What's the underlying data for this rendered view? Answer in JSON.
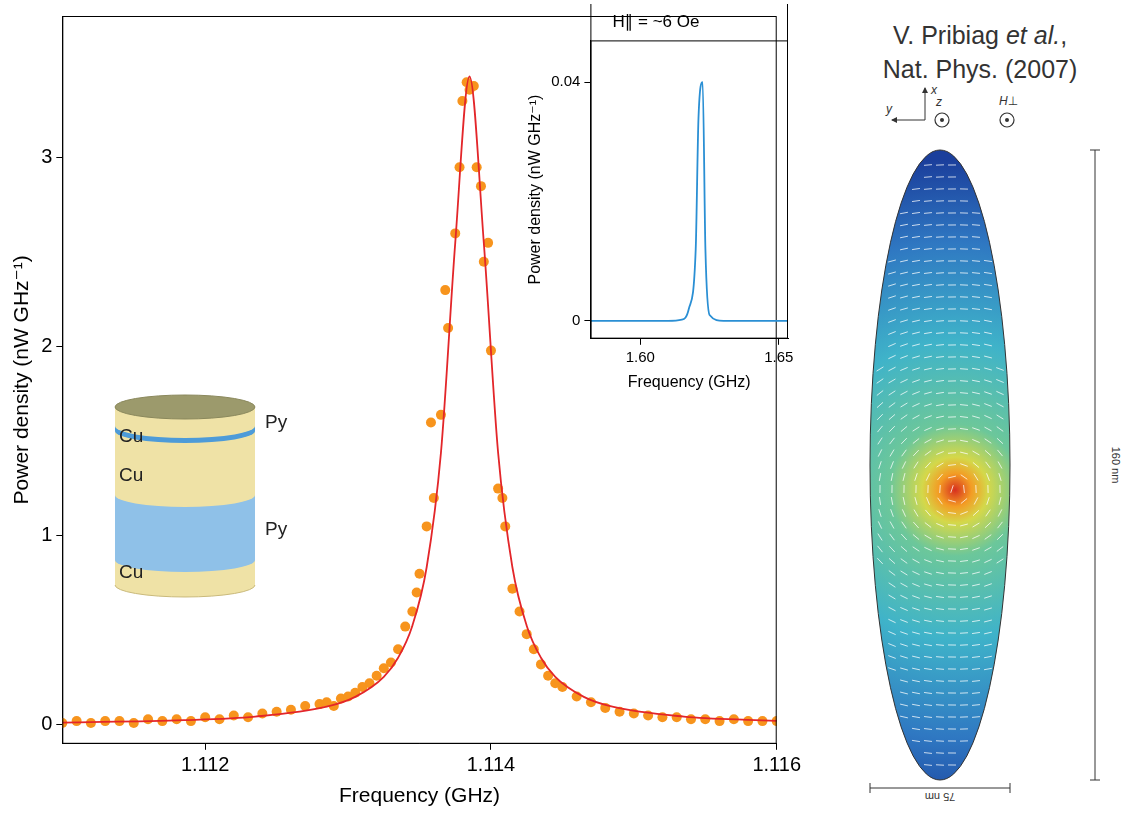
{
  "chart_data": [
    {
      "type": "scatter",
      "x_label": "Frequency (GHz)",
      "y_label": "Power density (nW GHz⁻¹)",
      "xlim": [
        1.111,
        1.116
      ],
      "xticks": [
        1.112,
        1.114,
        1.116
      ],
      "ylim": [
        -0.1,
        3.75
      ],
      "yticks": [
        0,
        1,
        2,
        3
      ],
      "grid": false,
      "series": [
        {
          "type": "scatter",
          "color": "#f7941d",
          "marker": "circle",
          "x": [
            1.111,
            1.1111,
            1.1112,
            1.1113,
            1.1114,
            1.1115,
            1.1116,
            1.1117,
            1.1118,
            1.1119,
            1.112,
            1.1121,
            1.1122,
            1.1123,
            1.1124,
            1.1125,
            1.1126,
            1.1127,
            1.1128,
            1.11285,
            1.1129,
            1.11295,
            1.113,
            1.11305,
            1.1131,
            1.11315,
            1.1132,
            1.11325,
            1.1133,
            1.11335,
            1.1134,
            1.11345,
            1.1135,
            1.11355,
            1.1136,
            1.11365,
            1.1137,
            1.11375,
            1.1138,
            1.11385,
            1.1139,
            1.11395,
            1.114,
            1.11405,
            1.1141,
            1.11415,
            1.1142,
            1.11425,
            1.1143,
            1.11435,
            1.1144,
            1.11445,
            1.11383,
            1.11388,
            1.11378,
            1.11393,
            1.11368,
            1.11398,
            1.11358,
            1.11408,
            1.11348,
            1.1145,
            1.1146,
            1.1147,
            1.1148,
            1.1149,
            1.115,
            1.1151,
            1.1152,
            1.1153,
            1.1154,
            1.1155,
            1.1156,
            1.1157,
            1.1158,
            1.1159,
            1.116
          ],
          "values": [
            0.01,
            0.02,
            0.01,
            0.02,
            0.02,
            0.01,
            0.03,
            0.02,
            0.03,
            0.02,
            0.04,
            0.03,
            0.05,
            0.04,
            0.06,
            0.07,
            0.08,
            0.1,
            0.11,
            0.12,
            0.1,
            0.14,
            0.15,
            0.17,
            0.2,
            0.22,
            0.26,
            0.3,
            0.33,
            0.4,
            0.52,
            0.6,
            0.8,
            1.05,
            1.2,
            1.64,
            2.1,
            2.6,
            3.3,
            3.36,
            2.95,
            2.45,
            1.98,
            1.25,
            1.05,
            0.72,
            0.6,
            0.48,
            0.4,
            0.32,
            0.26,
            0.22,
            3.4,
            3.38,
            2.95,
            2.85,
            2.3,
            2.55,
            1.6,
            1.2,
            0.7,
            0.2,
            0.15,
            0.12,
            0.09,
            0.07,
            0.06,
            0.05,
            0.04,
            0.04,
            0.03,
            0.03,
            0.02,
            0.03,
            0.02,
            0.02,
            0.02
          ]
        },
        {
          "type": "line",
          "color": "#e3262a",
          "line_style": "solid",
          "x": [
            1.111,
            1.11185,
            1.11235,
            1.11285,
            1.11305,
            1.11325,
            1.11335,
            1.11345,
            1.11355,
            1.11365,
            1.11375,
            1.11385,
            1.11395,
            1.11405,
            1.11415,
            1.11425,
            1.11435,
            1.11445,
            1.11465,
            1.11485,
            1.11535,
            1.11585,
            1.116
          ],
          "values": [
            0.012,
            0.025,
            0.044,
            0.096,
            0.148,
            0.254,
            0.355,
            0.525,
            0.834,
            1.44,
            2.55,
            3.43,
            2.55,
            1.44,
            0.834,
            0.525,
            0.355,
            0.254,
            0.148,
            0.096,
            0.044,
            0.025,
            0.021
          ]
        }
      ]
    },
    {
      "type": "line",
      "title": "H∥ = ~6 Oe",
      "x_label": "Frequency (GHz)",
      "y_label": "Power density (nW GHz⁻¹)",
      "xlim": [
        1.582,
        1.6533
      ],
      "xticks": [
        {
          "value": 1.6,
          "label": "1.60"
        },
        {
          "value": 1.65,
          "label": "1.65"
        }
      ],
      "ylim": [
        -0.003,
        0.047
      ],
      "yticks": [
        0,
        0.04
      ],
      "grid": false,
      "series": [
        {
          "color": "#2a8fd4",
          "line_style": "solid",
          "x": [
            1.582,
            1.59,
            1.6,
            1.61,
            1.615,
            1.6175,
            1.62,
            1.621,
            1.6225,
            1.6235,
            1.625,
            1.63,
            1.64,
            1.65,
            1.6533
          ],
          "values": [
            0,
            0,
            0,
            0,
            0.0002,
            0.002,
            0.012,
            0.034,
            0.04,
            0.012,
            0.001,
            0,
            0,
            0,
            0
          ]
        }
      ]
    }
  ],
  "citation": {
    "line1": [
      {
        "text": "V. Pribiag ",
        "italic": false
      },
      {
        "text": "et al.",
        "italic": true
      },
      {
        "text": ",",
        "italic": false
      }
    ],
    "line2": "Nat. Phys. (2007)"
  },
  "layer_stack": {
    "left_labels": [
      "Cu",
      "Cu",
      "Cu"
    ],
    "right_labels": [
      "Py",
      "Py"
    ]
  },
  "simulation": {
    "axis_labels": [
      "x",
      "y",
      "z"
    ],
    "field_label": "H⊥",
    "length_label": "160 nm",
    "width_label": "75 nm"
  }
}
